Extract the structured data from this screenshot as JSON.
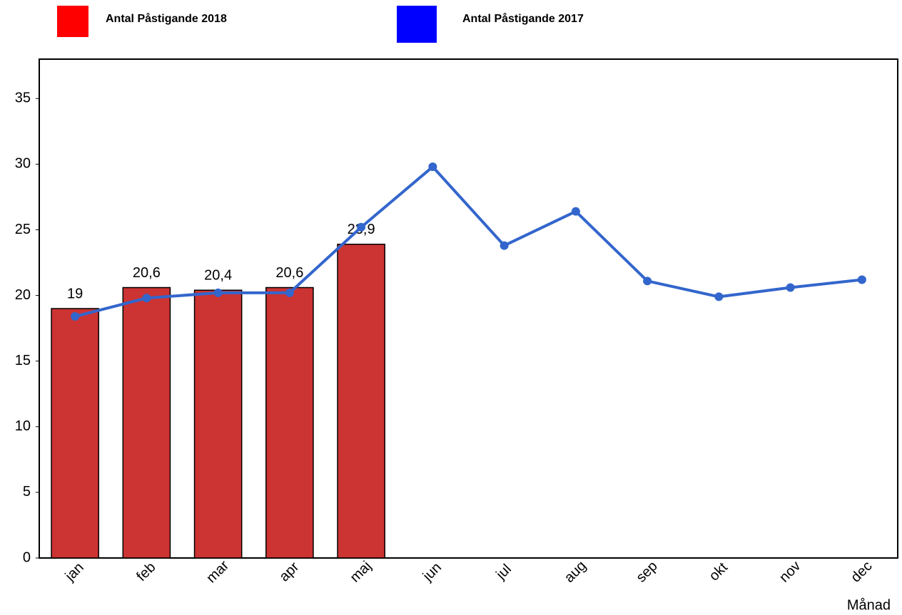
{
  "chart_data": {
    "type": "bar",
    "x_label": "Månad",
    "categories": [
      "jan",
      "feb",
      "mar",
      "apr",
      "maj",
      "jun",
      "jul",
      "aug",
      "sep",
      "okt",
      "nov",
      "dec"
    ],
    "series": [
      {
        "name": "Antal Påstigande 2018",
        "type": "bar",
        "color": "#cc3333",
        "legend_color": "#ff0000",
        "values": [
          19,
          20.6,
          20.4,
          20.6,
          23.9,
          null,
          null,
          null,
          null,
          null,
          null,
          null
        ],
        "value_labels": [
          "19",
          "20,6",
          "20,4",
          "20,6",
          "23,9",
          null,
          null,
          null,
          null,
          null,
          null,
          null
        ]
      },
      {
        "name": "Antal Påstigande 2017",
        "type": "line",
        "color": "#3366cc",
        "legend_color": "#0000ff",
        "values": [
          18.4,
          19.8,
          20.2,
          20.2,
          25.2,
          29.8,
          23.8,
          26.4,
          21.1,
          19.9,
          20.6,
          21.2
        ]
      }
    ],
    "ylim": [
      0,
      38
    ],
    "yticks": [
      0,
      5,
      10,
      15,
      20,
      25,
      30,
      35
    ],
    "grid": false
  }
}
